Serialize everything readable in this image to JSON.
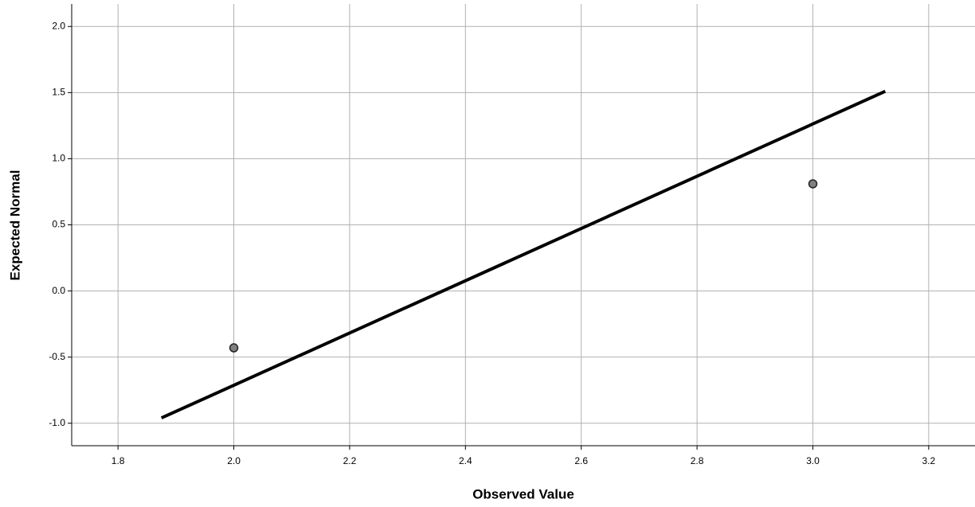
{
  "chart_data": {
    "type": "scatter",
    "x_label": "Observed Value",
    "y_label": "Expected Normal",
    "points": {
      "x": [
        2.0,
        3.0
      ],
      "values": [
        -0.43,
        0.81
      ],
      "color": "#808080"
    },
    "line": {
      "x": [
        1.875,
        3.125
      ],
      "values": [
        -0.96,
        1.51
      ],
      "color": "#000000"
    },
    "xlim": [
      1.72,
      3.28
    ],
    "ylim": [
      -1.17,
      2.17
    ],
    "xticks": [
      1.8,
      {
        "value": 2.0,
        "label": "2.0"
      },
      2.2,
      2.4,
      2.6,
      2.8,
      {
        "value": 3.0,
        "label": "3.0"
      },
      3.2
    ],
    "yticks": [
      {
        "value": -1.0,
        "label": "-1.0"
      },
      -0.5,
      {
        "value": 0.0,
        "label": "0.0"
      },
      0.5,
      {
        "value": 1.0,
        "label": "1.0"
      },
      1.5,
      {
        "value": 2.0,
        "label": "2.0"
      }
    ],
    "grid": true
  }
}
